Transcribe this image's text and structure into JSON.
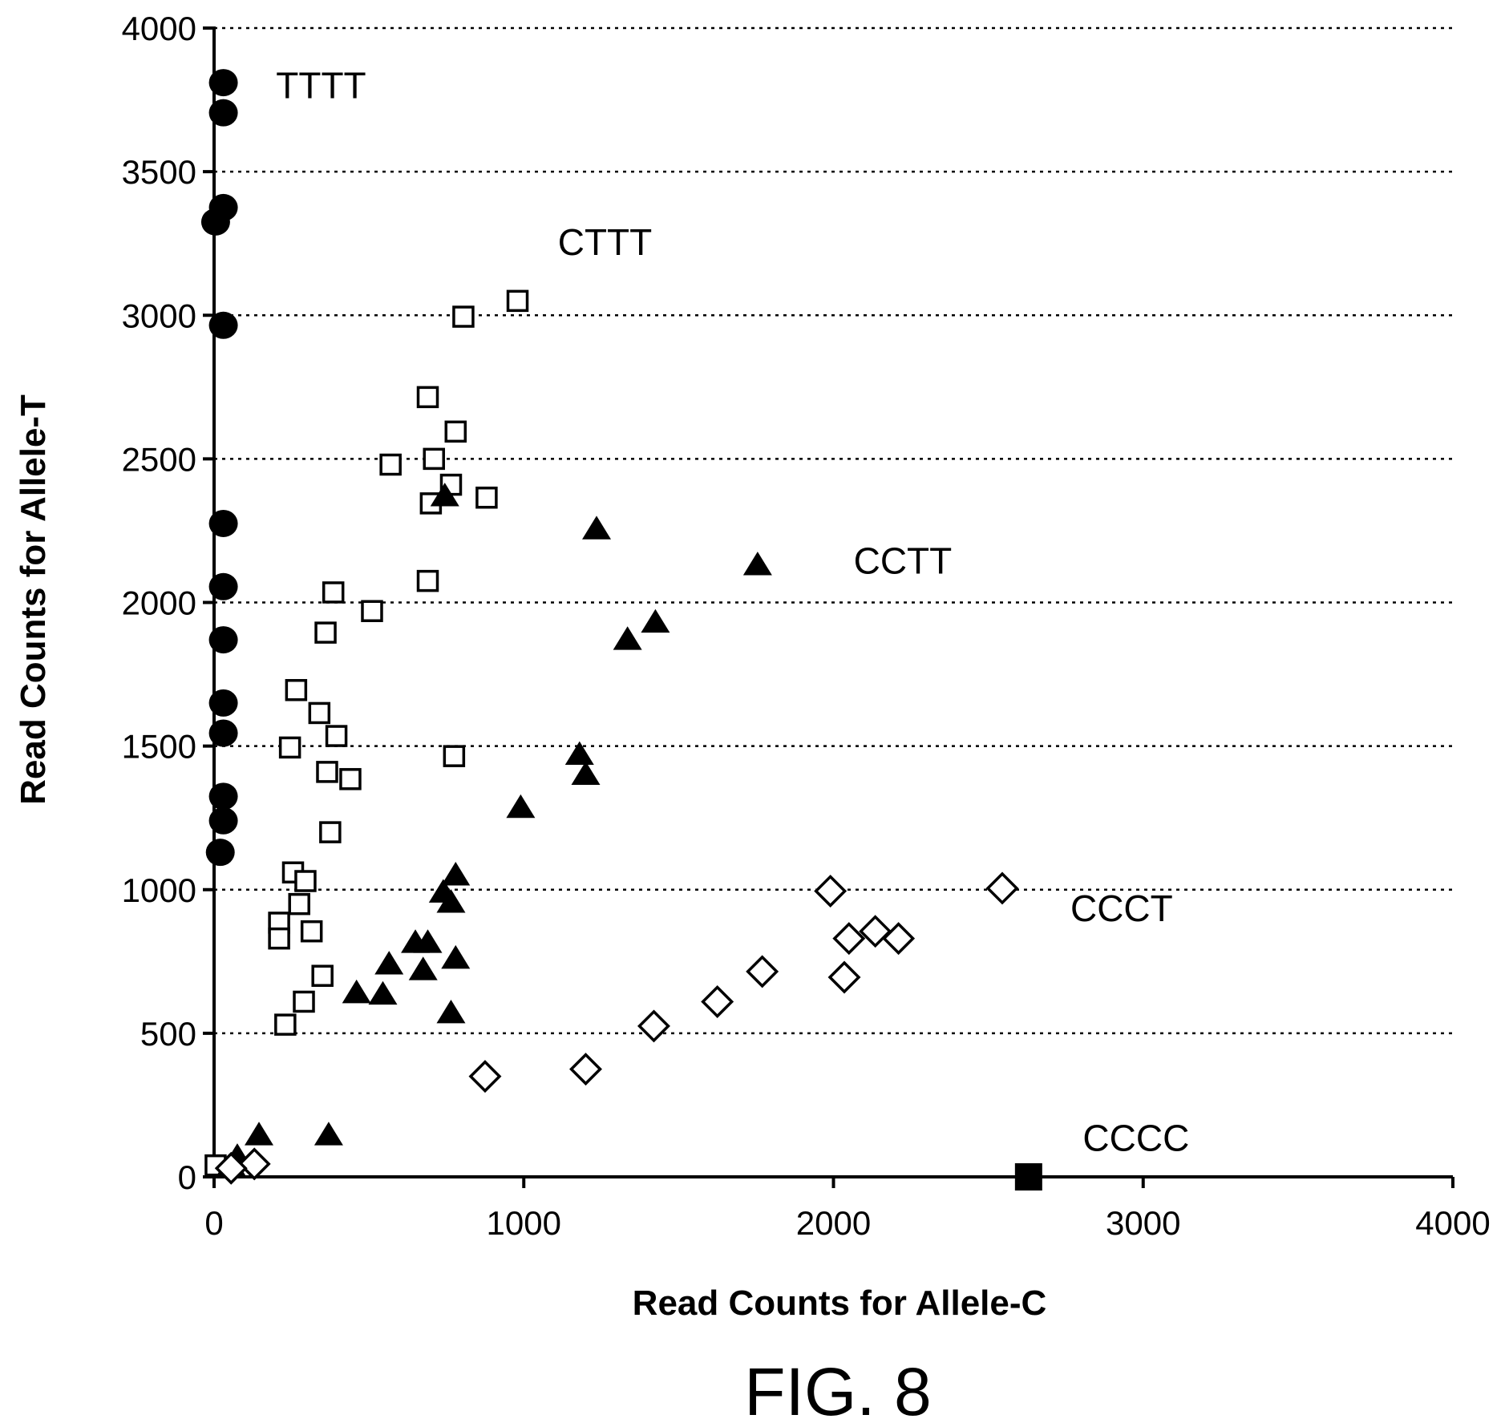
{
  "figure_caption": "FIG. 8",
  "chart_data": {
    "type": "scatter",
    "xlabel": "Read Counts for Allele-C",
    "ylabel": "Read Counts for Allele-T",
    "xlim": [
      0,
      4000
    ],
    "ylim": [
      0,
      4000
    ],
    "x_ticks": [
      0,
      1000,
      2000,
      3000,
      4000
    ],
    "y_ticks": [
      0,
      500,
      1000,
      1500,
      2000,
      2500,
      3000,
      3500,
      4000
    ],
    "grid": "horizontal-dashed",
    "series": [
      {
        "name": "TTTT",
        "marker": "filled-circle",
        "color": "#000000",
        "points": [
          [
            30,
            3810
          ],
          [
            30,
            3705
          ],
          [
            30,
            3375
          ],
          [
            5,
            3325
          ],
          [
            30,
            2965
          ],
          [
            30,
            2275
          ],
          [
            30,
            2055
          ],
          [
            30,
            1870
          ],
          [
            30,
            1650
          ],
          [
            30,
            1545
          ],
          [
            30,
            1325
          ],
          [
            30,
            1240
          ],
          [
            20,
            1130
          ]
        ]
      },
      {
        "name": "CTTT",
        "marker": "open-square",
        "color": "#000000",
        "points": [
          [
            980,
            3050
          ],
          [
            805,
            2995
          ],
          [
            690,
            2715
          ],
          [
            780,
            2595
          ],
          [
            710,
            2500
          ],
          [
            570,
            2480
          ],
          [
            765,
            2410
          ],
          [
            880,
            2365
          ],
          [
            700,
            2345
          ],
          [
            690,
            2075
          ],
          [
            385,
            2035
          ],
          [
            510,
            1970
          ],
          [
            360,
            1895
          ],
          [
            265,
            1695
          ],
          [
            340,
            1615
          ],
          [
            395,
            1535
          ],
          [
            245,
            1495
          ],
          [
            775,
            1465
          ],
          [
            365,
            1410
          ],
          [
            440,
            1385
          ],
          [
            375,
            1200
          ],
          [
            255,
            1060
          ],
          [
            295,
            1030
          ],
          [
            275,
            950
          ],
          [
            210,
            885
          ],
          [
            315,
            855
          ],
          [
            210,
            830
          ],
          [
            350,
            700
          ],
          [
            290,
            610
          ],
          [
            230,
            530
          ],
          [
            5,
            40
          ]
        ]
      },
      {
        "name": "CCTT",
        "marker": "filled-triangle",
        "color": "#000000",
        "points": [
          [
            745,
            2370
          ],
          [
            1235,
            2255
          ],
          [
            1755,
            2130
          ],
          [
            1425,
            1930
          ],
          [
            1335,
            1870
          ],
          [
            1180,
            1470
          ],
          [
            1200,
            1400
          ],
          [
            990,
            1285
          ],
          [
            780,
            1050
          ],
          [
            740,
            990
          ],
          [
            765,
            955
          ],
          [
            650,
            815
          ],
          [
            690,
            815
          ],
          [
            565,
            740
          ],
          [
            675,
            720
          ],
          [
            780,
            760
          ],
          [
            460,
            640
          ],
          [
            545,
            635
          ],
          [
            765,
            570
          ],
          [
            145,
            145
          ],
          [
            370,
            145
          ],
          [
            75,
            70
          ],
          [
            55,
            40
          ]
        ]
      },
      {
        "name": "CCCT",
        "marker": "open-diamond",
        "color": "#000000",
        "points": [
          [
            1990,
            995
          ],
          [
            2545,
            1005
          ],
          [
            2050,
            830
          ],
          [
            2135,
            855
          ],
          [
            2210,
            830
          ],
          [
            2035,
            695
          ],
          [
            1770,
            715
          ],
          [
            1625,
            610
          ],
          [
            1420,
            525
          ],
          [
            1200,
            375
          ],
          [
            875,
            350
          ],
          [
            130,
            45
          ],
          [
            55,
            30
          ]
        ]
      },
      {
        "name": "CCCC",
        "marker": "filled-square",
        "color": "#000000",
        "points": [
          [
            2630,
            0
          ]
        ]
      }
    ],
    "annotations": [
      {
        "text": "TTTT",
        "x": 200,
        "y": 3800
      },
      {
        "text": "CTTT",
        "x": 1110,
        "y": 3255
      },
      {
        "text": "CCTT",
        "x": 2065,
        "y": 2145
      },
      {
        "text": "CCCT",
        "x": 2765,
        "y": 935
      },
      {
        "text": "CCCC",
        "x": 2805,
        "y": 135
      }
    ]
  }
}
